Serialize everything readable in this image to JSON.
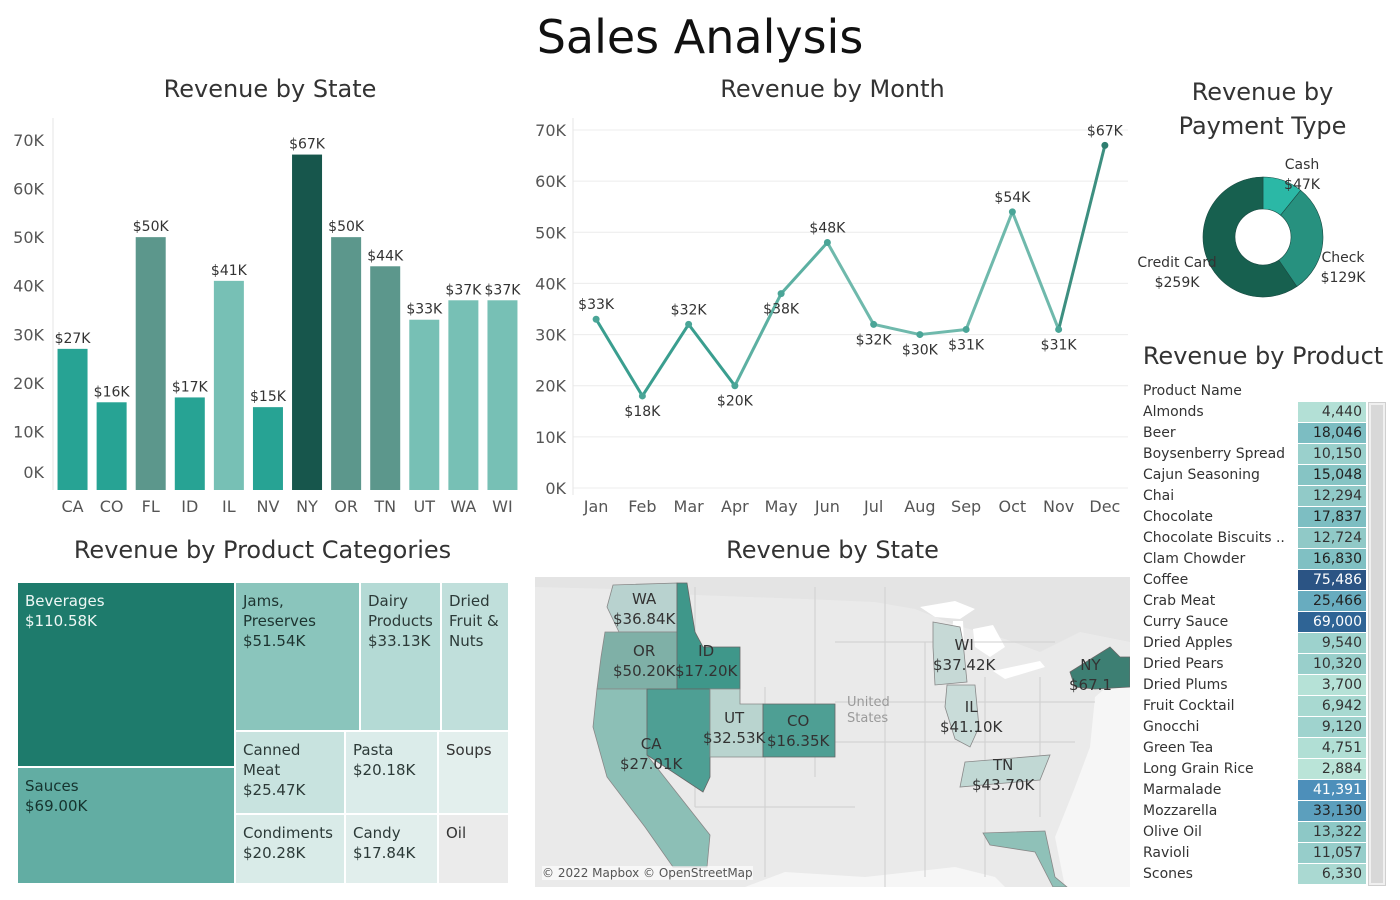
{
  "title": "Sales Analysis",
  "panels": {
    "state_bar_title": "Revenue by State",
    "month_line_title": "Revenue by Month",
    "payment_title_line1": "Revenue by",
    "payment_title_line2": "Payment Type",
    "product_title": "Revenue by Product",
    "categories_title": "Revenue by Product Categories",
    "map_title": "Revenue by State"
  },
  "colors": {
    "teal_dark": "#17564c",
    "teal_mid": "#5c978c",
    "teal": "#27a394",
    "teal_light": "#77c0b5",
    "grid": "#ececec"
  },
  "chart_data": [
    {
      "id": "state-bar",
      "type": "bar",
      "title": "Revenue by State",
      "categories": [
        "CA",
        "CO",
        "FL",
        "ID",
        "IL",
        "NV",
        "NY",
        "OR",
        "TN",
        "UT",
        "WA",
        "WI"
      ],
      "values": [
        27000,
        16000,
        50000,
        17000,
        41000,
        15000,
        67000,
        50000,
        44000,
        33000,
        37000,
        37000
      ],
      "labels": [
        "$27K",
        "$16K",
        "$50K",
        "$17K",
        "$41K",
        "$15K",
        "$67K",
        "$50K",
        "$44K",
        "$33K",
        "$37K",
        "$37K"
      ],
      "colors": [
        "#27a394",
        "#27a394",
        "#5c978c",
        "#27a394",
        "#77c0b5",
        "#27a394",
        "#17564c",
        "#5c978c",
        "#5c978c",
        "#77c0b5",
        "#77c0b5",
        "#77c0b5"
      ],
      "yticks": [
        "0K",
        "10K",
        "20K",
        "30K",
        "40K",
        "50K",
        "60K",
        "70K"
      ],
      "ylim": [
        0,
        70000
      ],
      "grid": false
    },
    {
      "id": "month-line",
      "type": "line",
      "title": "Revenue by Month",
      "categories": [
        "Jan",
        "Feb",
        "Mar",
        "Apr",
        "May",
        "Jun",
        "Jul",
        "Aug",
        "Sep",
        "Oct",
        "Nov",
        "Dec"
      ],
      "values": [
        33000,
        18000,
        32000,
        20000,
        38000,
        48000,
        32000,
        30000,
        31000,
        54000,
        31000,
        67000
      ],
      "labels": [
        "$33K",
        "$18K",
        "$32K",
        "$20K",
        "$38K",
        "$48K",
        "$32K",
        "$30K",
        "$31K",
        "$54K",
        "$31K",
        "$67K"
      ],
      "yticks": [
        "0K",
        "10K",
        "20K",
        "30K",
        "40K",
        "50K",
        "60K",
        "70K"
      ],
      "ylim": [
        0,
        70000
      ],
      "grid": true
    },
    {
      "id": "payment-donut",
      "type": "pie",
      "title": "Revenue by Payment Type",
      "categories": [
        "Cash",
        "Check",
        "Credit Card"
      ],
      "values": [
        47000,
        129000,
        259000
      ],
      "labels": [
        "$47K",
        "$129K",
        "$259K"
      ],
      "colors": [
        "#2bb8a6",
        "#27917f",
        "#17604f"
      ]
    },
    {
      "id": "product-table",
      "type": "table",
      "title": "Revenue by Product",
      "column": "Product Name",
      "rows": [
        {
          "name": "Almonds",
          "value": "4,440",
          "bg": "#b3e0d6",
          "fg": "#333333"
        },
        {
          "name": "Beer",
          "value": "18,046",
          "bg": "#7cbdc2",
          "fg": "#222222"
        },
        {
          "name": "Boysenberry Spread",
          "value": "10,150",
          "bg": "#9ad0cc",
          "fg": "#333333"
        },
        {
          "name": "Cajun Seasoning",
          "value": "15,048",
          "bg": "#86c4c4",
          "fg": "#222222"
        },
        {
          "name": "Chai",
          "value": "12,294",
          "bg": "#91cac8",
          "fg": "#333333"
        },
        {
          "name": "Chocolate",
          "value": "17,837",
          "bg": "#7dbec2",
          "fg": "#222222"
        },
        {
          "name": "Chocolate Biscuits ..",
          "value": "12,724",
          "bg": "#90c9c7",
          "fg": "#333333"
        },
        {
          "name": "Clam Chowder",
          "value": "16,830",
          "bg": "#80c0c3",
          "fg": "#222222"
        },
        {
          "name": "Coffee",
          "value": "75,486",
          "bg": "#2b5484",
          "fg": "#ffffff"
        },
        {
          "name": "Crab Meat",
          "value": "25,466",
          "bg": "#68acbf",
          "fg": "#222222"
        },
        {
          "name": "Curry Sauce",
          "value": "69,000",
          "bg": "#2f6495",
          "fg": "#ffffff"
        },
        {
          "name": "Dried Apples",
          "value": "9,540",
          "bg": "#9dd2cd",
          "fg": "#333333"
        },
        {
          "name": "Dried Pears",
          "value": "10,320",
          "bg": "#99cfcb",
          "fg": "#333333"
        },
        {
          "name": "Dried Plums",
          "value": "3,700",
          "bg": "#b6e2d7",
          "fg": "#333333"
        },
        {
          "name": "Fruit Cocktail",
          "value": "6,942",
          "bg": "#a8d9d1",
          "fg": "#333333"
        },
        {
          "name": "Gnocchi",
          "value": "9,120",
          "bg": "#9fd3ce",
          "fg": "#333333"
        },
        {
          "name": "Green Tea",
          "value": "4,751",
          "bg": "#b1dfd5",
          "fg": "#333333"
        },
        {
          "name": "Long Grain Rice",
          "value": "2,884",
          "bg": "#bae4d8",
          "fg": "#333333"
        },
        {
          "name": "Marmalade",
          "value": "41,391",
          "bg": "#4d8fba",
          "fg": "#ffffff"
        },
        {
          "name": "Mozzarella",
          "value": "33,130",
          "bg": "#5c9fbd",
          "fg": "#222222"
        },
        {
          "name": "Olive Oil",
          "value": "13,322",
          "bg": "#8dc8c6",
          "fg": "#333333"
        },
        {
          "name": "Ravioli",
          "value": "11,057",
          "bg": "#96cdca",
          "fg": "#333333"
        },
        {
          "name": "Scones",
          "value": "6,330",
          "bg": "#aad9d2",
          "fg": "#333333"
        }
      ]
    },
    {
      "id": "category-treemap",
      "type": "heatmap",
      "title": "Revenue by Product Categories",
      "cells": [
        {
          "name": "Beverages",
          "value": "$110.58K",
          "bg": "#1e7b6c",
          "fg": "#eef7f5"
        },
        {
          "name": "Sauces",
          "value": "$69.00K",
          "bg": "#62ada3",
          "fg": "#15332e"
        },
        {
          "name": "Jams, Preserves",
          "value": "$51.54K",
          "bg": "#8ac5bc",
          "fg": "#1d3430"
        },
        {
          "name": "Dairy Products",
          "value": "$33.13K",
          "bg": "#b4dad5",
          "fg": "#2c3a38"
        },
        {
          "name": "Dried Fruit & Nuts",
          "value": "",
          "bg": "#c0dfdb",
          "fg": "#2c3a38"
        },
        {
          "name": "Canned Meat",
          "value": "$25.47K",
          "bg": "#c8e3df",
          "fg": "#2c3a38"
        },
        {
          "name": "Pasta",
          "value": "$20.18K",
          "bg": "#dbecea",
          "fg": "#2c3a38"
        },
        {
          "name": "Soups",
          "value": "",
          "bg": "#e3efed",
          "fg": "#333333"
        },
        {
          "name": "Condiments",
          "value": "$20.28K",
          "bg": "#d9ebe8",
          "fg": "#2c3a38"
        },
        {
          "name": "Candy",
          "value": "$17.84K",
          "bg": "#e1eeec",
          "fg": "#2c3a38"
        },
        {
          "name": "Oil",
          "value": "",
          "bg": "#ebebeb",
          "fg": "#333333"
        }
      ]
    }
  ],
  "map": {
    "country_label_1": "United",
    "country_label_2": "States",
    "credit": "© 2022 Mapbox © OpenStreetMap",
    "states": [
      {
        "code": "WA",
        "value": "$36.84K"
      },
      {
        "code": "OR",
        "value": "$50.20K"
      },
      {
        "code": "ID",
        "value": "$17.20K"
      },
      {
        "code": "CA",
        "value": "$27.01K"
      },
      {
        "code": "UT",
        "value": "$32.53K"
      },
      {
        "code": "CO",
        "value": "$16.35K"
      },
      {
        "code": "WI",
        "value": "$37.42K"
      },
      {
        "code": "IL",
        "value": "$41.10K"
      },
      {
        "code": "TN",
        "value": "$43.70K"
      },
      {
        "code": "NY",
        "value": "$67.1"
      }
    ]
  }
}
